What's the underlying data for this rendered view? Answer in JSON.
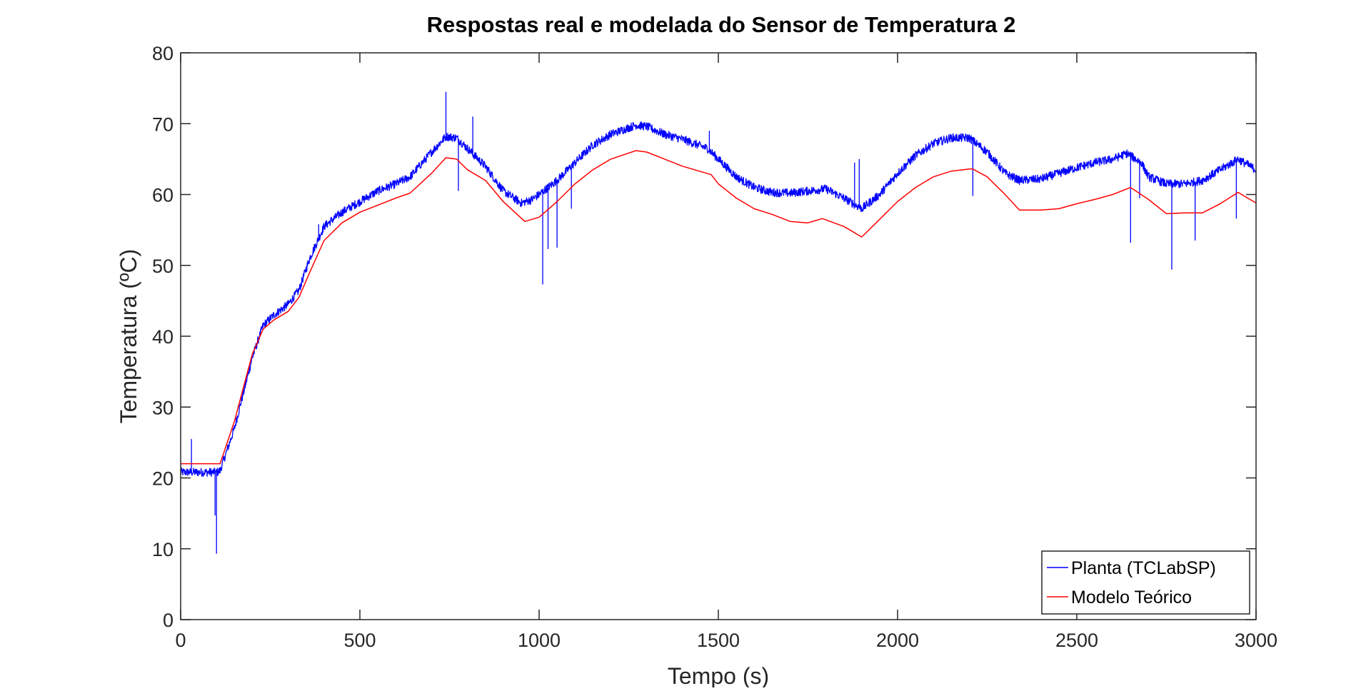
{
  "chart_data": {
    "type": "line",
    "title": "Respostas real e modelada do Sensor de Temperatura 2",
    "xlabel": "Tempo (s)",
    "ylabel": "Temperatura (ºC)",
    "xlim": [
      0,
      3000
    ],
    "ylim": [
      0,
      80
    ],
    "xticks": [
      0,
      500,
      1000,
      1500,
      2000,
      2500,
      3000
    ],
    "yticks": [
      0,
      10,
      20,
      30,
      40,
      50,
      60,
      70,
      80
    ],
    "xtick_labels": [
      "0",
      "500",
      "1000",
      "1500",
      "2000",
      "2500",
      "3000"
    ],
    "ytick_labels": [
      "0",
      "10",
      "20",
      "30",
      "40",
      "50",
      "60",
      "70",
      "80"
    ],
    "grid": false,
    "legend_position": "bottom-right",
    "series": [
      {
        "name": "Planta (TCLabSP)",
        "color": "#0000ff",
        "noise_amplitude": 0.6,
        "x": [
          0,
          100,
          110,
          150,
          200,
          230,
          260,
          300,
          330,
          360,
          400,
          450,
          500,
          550,
          600,
          640,
          700,
          740,
          770,
          800,
          850,
          900,
          950,
          980,
          1000,
          1050,
          1100,
          1150,
          1200,
          1270,
          1300,
          1350,
          1400,
          1470,
          1500,
          1550,
          1600,
          1650,
          1700,
          1750,
          1800,
          1850,
          1900,
          1950,
          2000,
          2050,
          2100,
          2150,
          2200,
          2250,
          2300,
          2340,
          2400,
          2450,
          2500,
          2550,
          2600,
          2640,
          2680,
          2700,
          2750,
          2800,
          2850,
          2900,
          2950,
          3000
        ],
        "y": [
          20.8,
          20.8,
          21.0,
          27.0,
          37.0,
          41.5,
          43.0,
          44.5,
          46.5,
          51.0,
          55.5,
          57.5,
          59.0,
          60.5,
          61.5,
          62.5,
          66.0,
          68.2,
          68.0,
          66.5,
          64.0,
          60.5,
          58.8,
          59.3,
          60.0,
          62.0,
          64.5,
          67.0,
          68.5,
          69.8,
          69.6,
          68.5,
          67.8,
          66.5,
          65.0,
          62.5,
          61.0,
          60.3,
          60.2,
          60.5,
          60.8,
          59.5,
          58.0,
          60.0,
          63.0,
          65.5,
          67.2,
          68.0,
          68.0,
          66.0,
          63.0,
          62.0,
          62.2,
          63.0,
          63.8,
          64.5,
          65.0,
          65.8,
          64.5,
          62.5,
          61.5,
          61.5,
          62.0,
          63.5,
          65.0,
          63.5
        ],
        "spikes": [
          [
            30,
            25.5
          ],
          [
            96,
            14.7
          ],
          [
            100,
            9.3
          ],
          [
            385,
            55.8
          ],
          [
            740,
            74.5
          ],
          [
            775,
            60.5
          ],
          [
            815,
            71.0
          ],
          [
            1010,
            47.3
          ],
          [
            1025,
            52.3
          ],
          [
            1050,
            52.5
          ],
          [
            1090,
            58.0
          ],
          [
            1475,
            69.0
          ],
          [
            1880,
            64.5
          ],
          [
            1893,
            65.0
          ],
          [
            2210,
            59.8
          ],
          [
            2650,
            53.2
          ],
          [
            2675,
            59.5
          ],
          [
            2765,
            49.4
          ],
          [
            2830,
            53.5
          ],
          [
            2945,
            56.6
          ]
        ]
      },
      {
        "name": "Modelo Teórico",
        "color": "#ff0000",
        "x": [
          0,
          100,
          110,
          150,
          200,
          230,
          260,
          300,
          330,
          360,
          400,
          450,
          500,
          550,
          600,
          640,
          700,
          740,
          770,
          800,
          850,
          900,
          960,
          1000,
          1050,
          1100,
          1150,
          1200,
          1270,
          1300,
          1350,
          1400,
          1480,
          1500,
          1550,
          1600,
          1650,
          1700,
          1750,
          1790,
          1850,
          1900,
          1950,
          2000,
          2050,
          2100,
          2150,
          2200,
          2210,
          2250,
          2300,
          2340,
          2400,
          2450,
          2500,
          2550,
          2600,
          2650,
          2700,
          2750,
          2800,
          2850,
          2900,
          2950,
          3000
        ],
        "y": [
          22.0,
          22.0,
          22.0,
          28.0,
          37.5,
          41.0,
          42.3,
          43.5,
          45.5,
          49.0,
          53.5,
          56.0,
          57.5,
          58.5,
          59.5,
          60.2,
          63.0,
          65.2,
          65.0,
          63.5,
          62.0,
          59.0,
          56.2,
          56.8,
          59.0,
          61.5,
          63.5,
          65.0,
          66.2,
          66.0,
          65.0,
          64.0,
          62.8,
          61.5,
          59.5,
          58.0,
          57.2,
          56.2,
          56.0,
          56.6,
          55.5,
          54.0,
          56.5,
          59.0,
          61.0,
          62.5,
          63.3,
          63.6,
          63.6,
          62.5,
          60.0,
          57.8,
          57.8,
          58.0,
          58.7,
          59.3,
          60.0,
          61.0,
          59.3,
          57.3,
          57.4,
          57.4,
          58.7,
          60.3,
          58.8
        ]
      }
    ]
  }
}
